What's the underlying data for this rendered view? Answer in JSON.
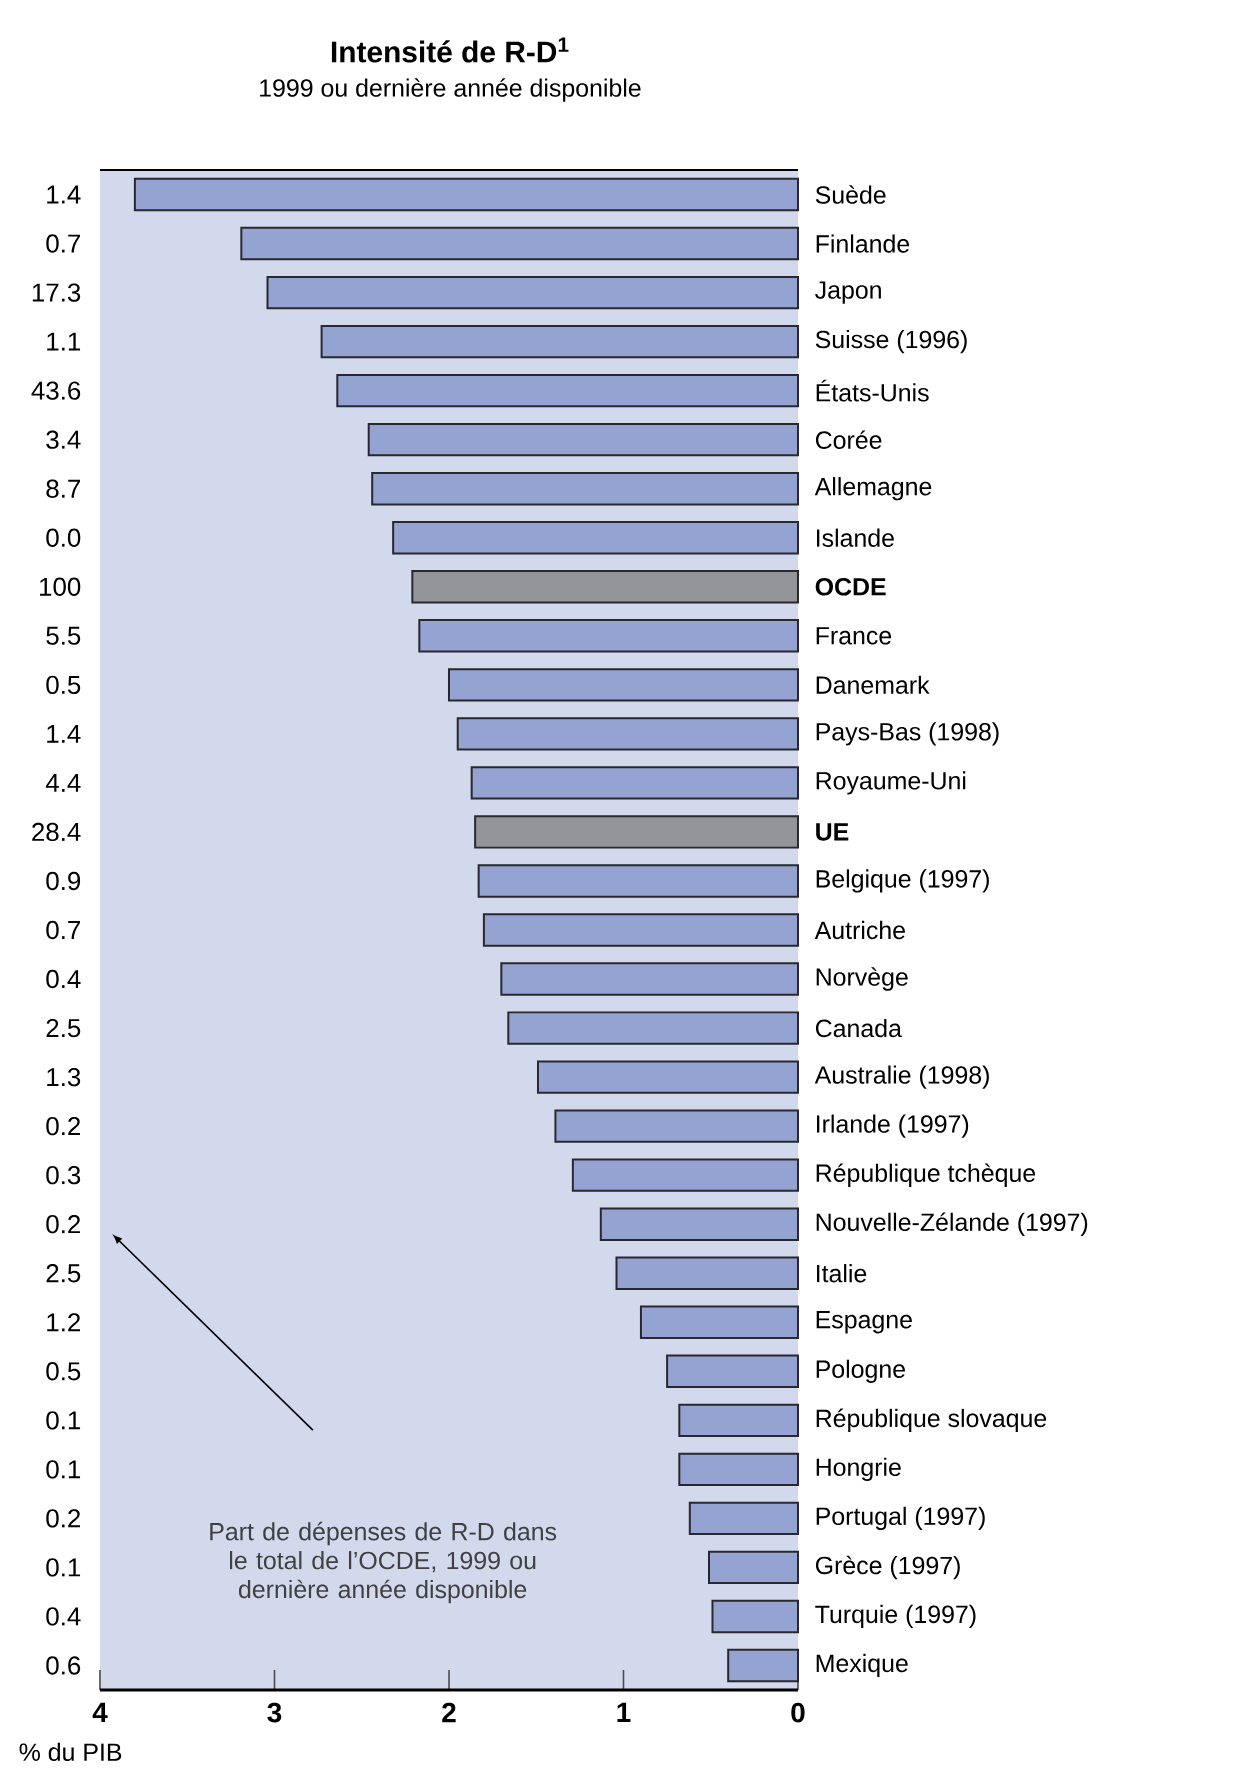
{
  "chart_data": {
    "type": "bar",
    "orientation": "horizontal",
    "title": "Intensité de R-D$^{1}$",
    "subtitle": "1999 ou dernière année disponible",
    "xlabel": "% du PIB",
    "categories": [
      "Suède",
      "Finlande",
      "Japon",
      "Suisse (1996)",
      "États-Unis",
      "Corée",
      "Allemagne",
      "Islande",
      "**OCDE**",
      "France",
      "Danemark",
      "Pays-Bas (1998)",
      "Royaume-Uni",
      "**UE**",
      "Belgique (1997)",
      "Autriche",
      "Norvège",
      "Canada",
      "Australie (1998)",
      "Irlande (1997)",
      "République tchèque",
      "Nouvelle-Zélande (1997)",
      "Italie",
      "Espagne",
      "Pologne",
      "République slovaque",
      "Hongrie",
      "Portugal (1997)",
      "Grèce (1997)",
      "Turquie (1997)",
      "Mexique"
    ],
    "values": [
      3.8,
      3.19,
      3.04,
      2.73,
      2.64,
      2.46,
      2.44,
      2.32,
      2.21,
      2.17,
      2.0,
      1.95,
      1.87,
      1.85,
      1.83,
      1.8,
      1.7,
      1.66,
      1.49,
      1.39,
      1.29,
      1.13,
      1.04,
      0.9,
      0.75,
      0.68,
      0.68,
      0.62,
      0.51,
      0.49,
      0.4
    ],
    "colors": [
      "#94a3d1",
      "#94a3d1",
      "#94a3d1",
      "#94a3d1",
      "#94a3d1",
      "#94a3d1",
      "#94a3d1",
      "#94a3d1",
      "#939598",
      "#94a3d1",
      "#94a3d1",
      "#94a3d1",
      "#94a3d1",
      "#939598",
      "#94a3d1",
      "#94a3d1",
      "#94a3d1",
      "#94a3d1",
      "#94a3d1",
      "#94a3d1",
      "#94a3d1",
      "#94a3d1",
      "#94a3d1",
      "#94a3d1",
      "#94a3d1",
      "#94a3d1",
      "#94a3d1",
      "#94a3d1",
      "#94a3d1",
      "#94a3d1",
      "#94a3d1"
    ],
    "xlim": [
      4,
      0
    ],
    "xticks": [
      4,
      3,
      2,
      1,
      0
    ],
    "grid": false,
    "annotations": [
      "1.4",
      "0.7",
      "17.3",
      "1.1",
      "43.6",
      "3.4",
      "8.7",
      "0.0",
      "100",
      "5.5",
      "0.5",
      "1.4",
      "4.4",
      "28.4",
      "0.9",
      "0.7",
      "0.4",
      "2.5",
      "1.3",
      "0.2",
      "0.3",
      "0.2",
      "2.5",
      "1.2",
      "0.5",
      "0.1",
      "0.1",
      "0.2",
      "0.1",
      "0.4",
      "0.6",
      "Part de dépenses de R-D dans le total de l’OCDE, 1999 ou dernière année disponible"
    ]
  }
}
